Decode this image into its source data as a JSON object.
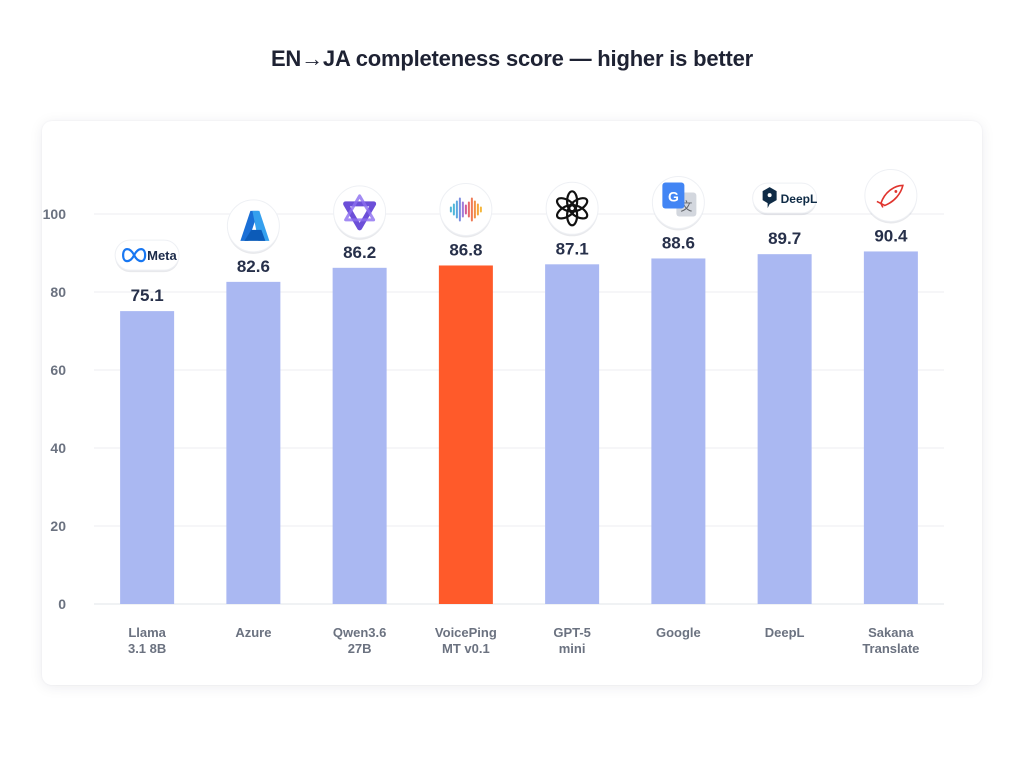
{
  "title": "EN→JA completeness score — higher is better",
  "colors": {
    "bar": "#aab8f2",
    "highlight": "#ff5a2a",
    "grid": "#eceef2",
    "text_value": "#27304a",
    "text_axis": "#6b7280"
  },
  "chart_data": {
    "type": "bar",
    "title": "EN→JA completeness score — higher is better",
    "xlabel": "",
    "ylabel": "",
    "ylim": [
      0,
      110
    ],
    "yticks": [
      0,
      20,
      40,
      60,
      80,
      100
    ],
    "grid": true,
    "highlight_index": 3,
    "categories": [
      [
        "Llama",
        "3.1 8B"
      ],
      [
        "Azure"
      ],
      [
        "Qwen3.6",
        "27B"
      ],
      [
        "VoicePing",
        "MT v0.1"
      ],
      [
        "GPT-5",
        "mini"
      ],
      [
        "Google"
      ],
      [
        "DeepL"
      ],
      [
        "Sakana",
        "Translate"
      ]
    ],
    "values": [
      75.1,
      82.6,
      86.2,
      86.8,
      87.1,
      88.6,
      89.7,
      90.4
    ],
    "value_labels": [
      "75.1",
      "82.6",
      "86.2",
      "86.8",
      "87.1",
      "88.6",
      "89.7",
      "90.4"
    ],
    "logos": [
      {
        "icon": "meta-logo-icon",
        "text": "Meta",
        "shape": "pill"
      },
      {
        "icon": "azure-logo-icon",
        "text": "",
        "shape": "circle"
      },
      {
        "icon": "qwen-logo-icon",
        "text": "",
        "shape": "circle"
      },
      {
        "icon": "voiceping-logo-icon",
        "text": "",
        "shape": "circle"
      },
      {
        "icon": "openai-logo-icon",
        "text": "",
        "shape": "circle"
      },
      {
        "icon": "google-translate-logo-icon",
        "text": "",
        "shape": "circle"
      },
      {
        "icon": "deepl-logo-icon",
        "text": "DeepL",
        "shape": "pill"
      },
      {
        "icon": "sakana-logo-icon",
        "text": "",
        "shape": "circle"
      }
    ]
  }
}
